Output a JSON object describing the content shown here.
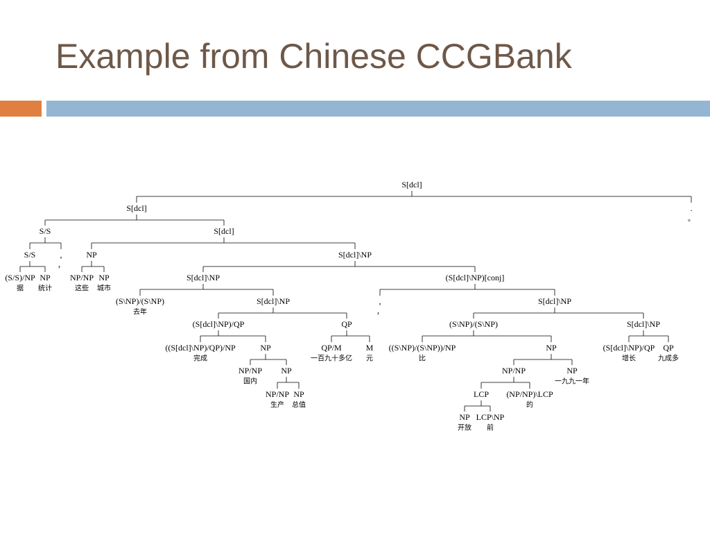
{
  "title": "Example from Chinese CCGBank",
  "tree": {
    "label": "S[dcl]",
    "children": [
      {
        "label": "S[dcl]",
        "children": [
          {
            "label": "S/S",
            "children": [
              {
                "label": "S/S",
                "children": [
                  {
                    "label": "(S/S)/NP",
                    "word": "据"
                  },
                  {
                    "label": "NP",
                    "word": "统计"
                  }
                ]
              },
              {
                "label": ",",
                "word": "，"
              }
            ]
          },
          {
            "label": "S[dcl]",
            "children": [
              {
                "label": "NP",
                "children": [
                  {
                    "label": "NP/NP",
                    "word": "这些"
                  },
                  {
                    "label": "NP",
                    "word": "城市"
                  }
                ]
              },
              {
                "label": "S[dcl]\\NP",
                "children": [
                  {
                    "label": "S[dcl]\\NP",
                    "children": [
                      {
                        "label": "(S\\NP)/(S\\NP)",
                        "word": "去年"
                      },
                      {
                        "label": "S[dcl]\\NP",
                        "children": [
                          {
                            "label": "(S[dcl]\\NP)/QP",
                            "children": [
                              {
                                "label": "((S[dcl]\\NP)/QP)/NP",
                                "word": "完成"
                              },
                              {
                                "label": "NP",
                                "children": [
                                  {
                                    "label": "NP/NP",
                                    "word": "国内"
                                  },
                                  {
                                    "label": "NP",
                                    "children": [
                                      {
                                        "label": "NP/NP",
                                        "word": "生产"
                                      },
                                      {
                                        "label": "NP",
                                        "word": "总值"
                                      }
                                    ]
                                  }
                                ]
                              }
                            ]
                          },
                          {
                            "label": "QP",
                            "children": [
                              {
                                "label": "QP/M",
                                "word": "一百九十多亿"
                              },
                              {
                                "label": "M",
                                "word": "元"
                              }
                            ]
                          }
                        ]
                      }
                    ]
                  },
                  {
                    "label": "(S[dcl]\\NP)[conj]",
                    "children": [
                      {
                        "label": ",",
                        "word": "，"
                      },
                      {
                        "label": "S[dcl]\\NP",
                        "children": [
                          {
                            "label": "(S\\NP)/(S\\NP)",
                            "children": [
                              {
                                "label": "((S\\NP)/(S\\NP))/NP",
                                "word": "比"
                              },
                              {
                                "label": "NP",
                                "children": [
                                  {
                                    "label": "NP/NP",
                                    "children": [
                                      {
                                        "label": "LCP",
                                        "children": [
                                          {
                                            "label": "NP",
                                            "word": "开放"
                                          },
                                          {
                                            "label": "LCP\\NP",
                                            "word": "前"
                                          }
                                        ]
                                      },
                                      {
                                        "label": "(NP/NP)\\LCP",
                                        "word": "的"
                                      }
                                    ]
                                  },
                                  {
                                    "label": "NP",
                                    "word": "一九九一年"
                                  }
                                ]
                              }
                            ]
                          },
                          {
                            "label": "S[dcl]\\NP",
                            "children": [
                              {
                                "label": "(S[dcl]\\NP)/QP",
                                "word": "增长"
                              },
                              {
                                "label": "QP",
                                "word": "九成多"
                              }
                            ]
                          }
                        ]
                      }
                    ]
                  }
                ]
              }
            ]
          }
        ]
      },
      {
        "label": ".",
        "word": "。"
      }
    ]
  }
}
